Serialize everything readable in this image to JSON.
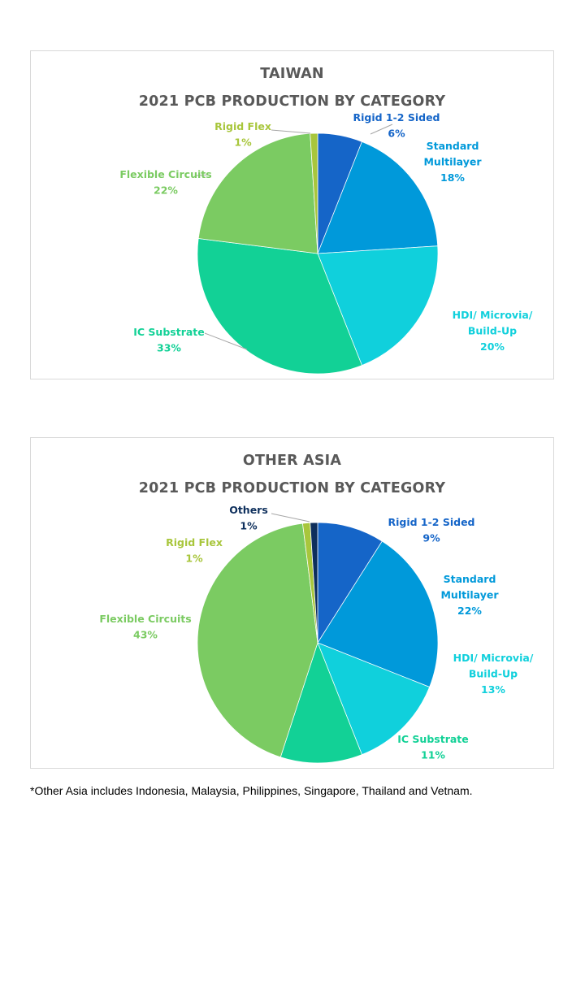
{
  "chart_data": [
    {
      "type": "pie",
      "title": "TAIWAN",
      "subtitle": "2021 PCB PRODUCTION BY CATEGORY",
      "slices": [
        {
          "label": "Rigid 1-2 Sided",
          "value": 6,
          "value_label": "6%",
          "color": "#1565C8"
        },
        {
          "label": "Standard Multilayer",
          "value": 18,
          "value_label": "18%",
          "color": "#0099DA"
        },
        {
          "label": "HDI/ Microvia/ Build-Up",
          "value": 20,
          "value_label": "20%",
          "color": "#10D0DC"
        },
        {
          "label": "IC Substrate",
          "value": 33,
          "value_label": "33%",
          "color": "#12D196"
        },
        {
          "label": "Flexible Circuits",
          "value": 22,
          "value_label": "22%",
          "color": "#7BCB62"
        },
        {
          "label": "Rigid Flex",
          "value": 1,
          "value_label": "1%",
          "color": "#A8C63C"
        }
      ]
    },
    {
      "type": "pie",
      "title": "OTHER ASIA",
      "subtitle": "2021 PCB PRODUCTION BY CATEGORY",
      "slices": [
        {
          "label": "Rigid 1-2 Sided",
          "value": 9,
          "value_label": "9%",
          "color": "#1565C8"
        },
        {
          "label": "Standard Multilayer",
          "value": 22,
          "value_label": "22%",
          "color": "#0099DA"
        },
        {
          "label": "HDI/ Microvia/ Build-Up",
          "value": 13,
          "value_label": "13%",
          "color": "#10D0DC"
        },
        {
          "label": "IC Substrate",
          "value": 11,
          "value_label": "11%",
          "color": "#12D196"
        },
        {
          "label": "Flexible Circuits",
          "value": 43,
          "value_label": "43%",
          "color": "#7BCB62"
        },
        {
          "label": "Rigid Flex",
          "value": 1,
          "value_label": "1%",
          "color": "#A8C63C"
        },
        {
          "label": "Others",
          "value": 1,
          "value_label": "1%",
          "color": "#0E2F5C"
        }
      ]
    }
  ],
  "footnote": "*Other Asia includes Indonesia, Malaysia, Philippines, Singapore, Thailand and Vetnam."
}
